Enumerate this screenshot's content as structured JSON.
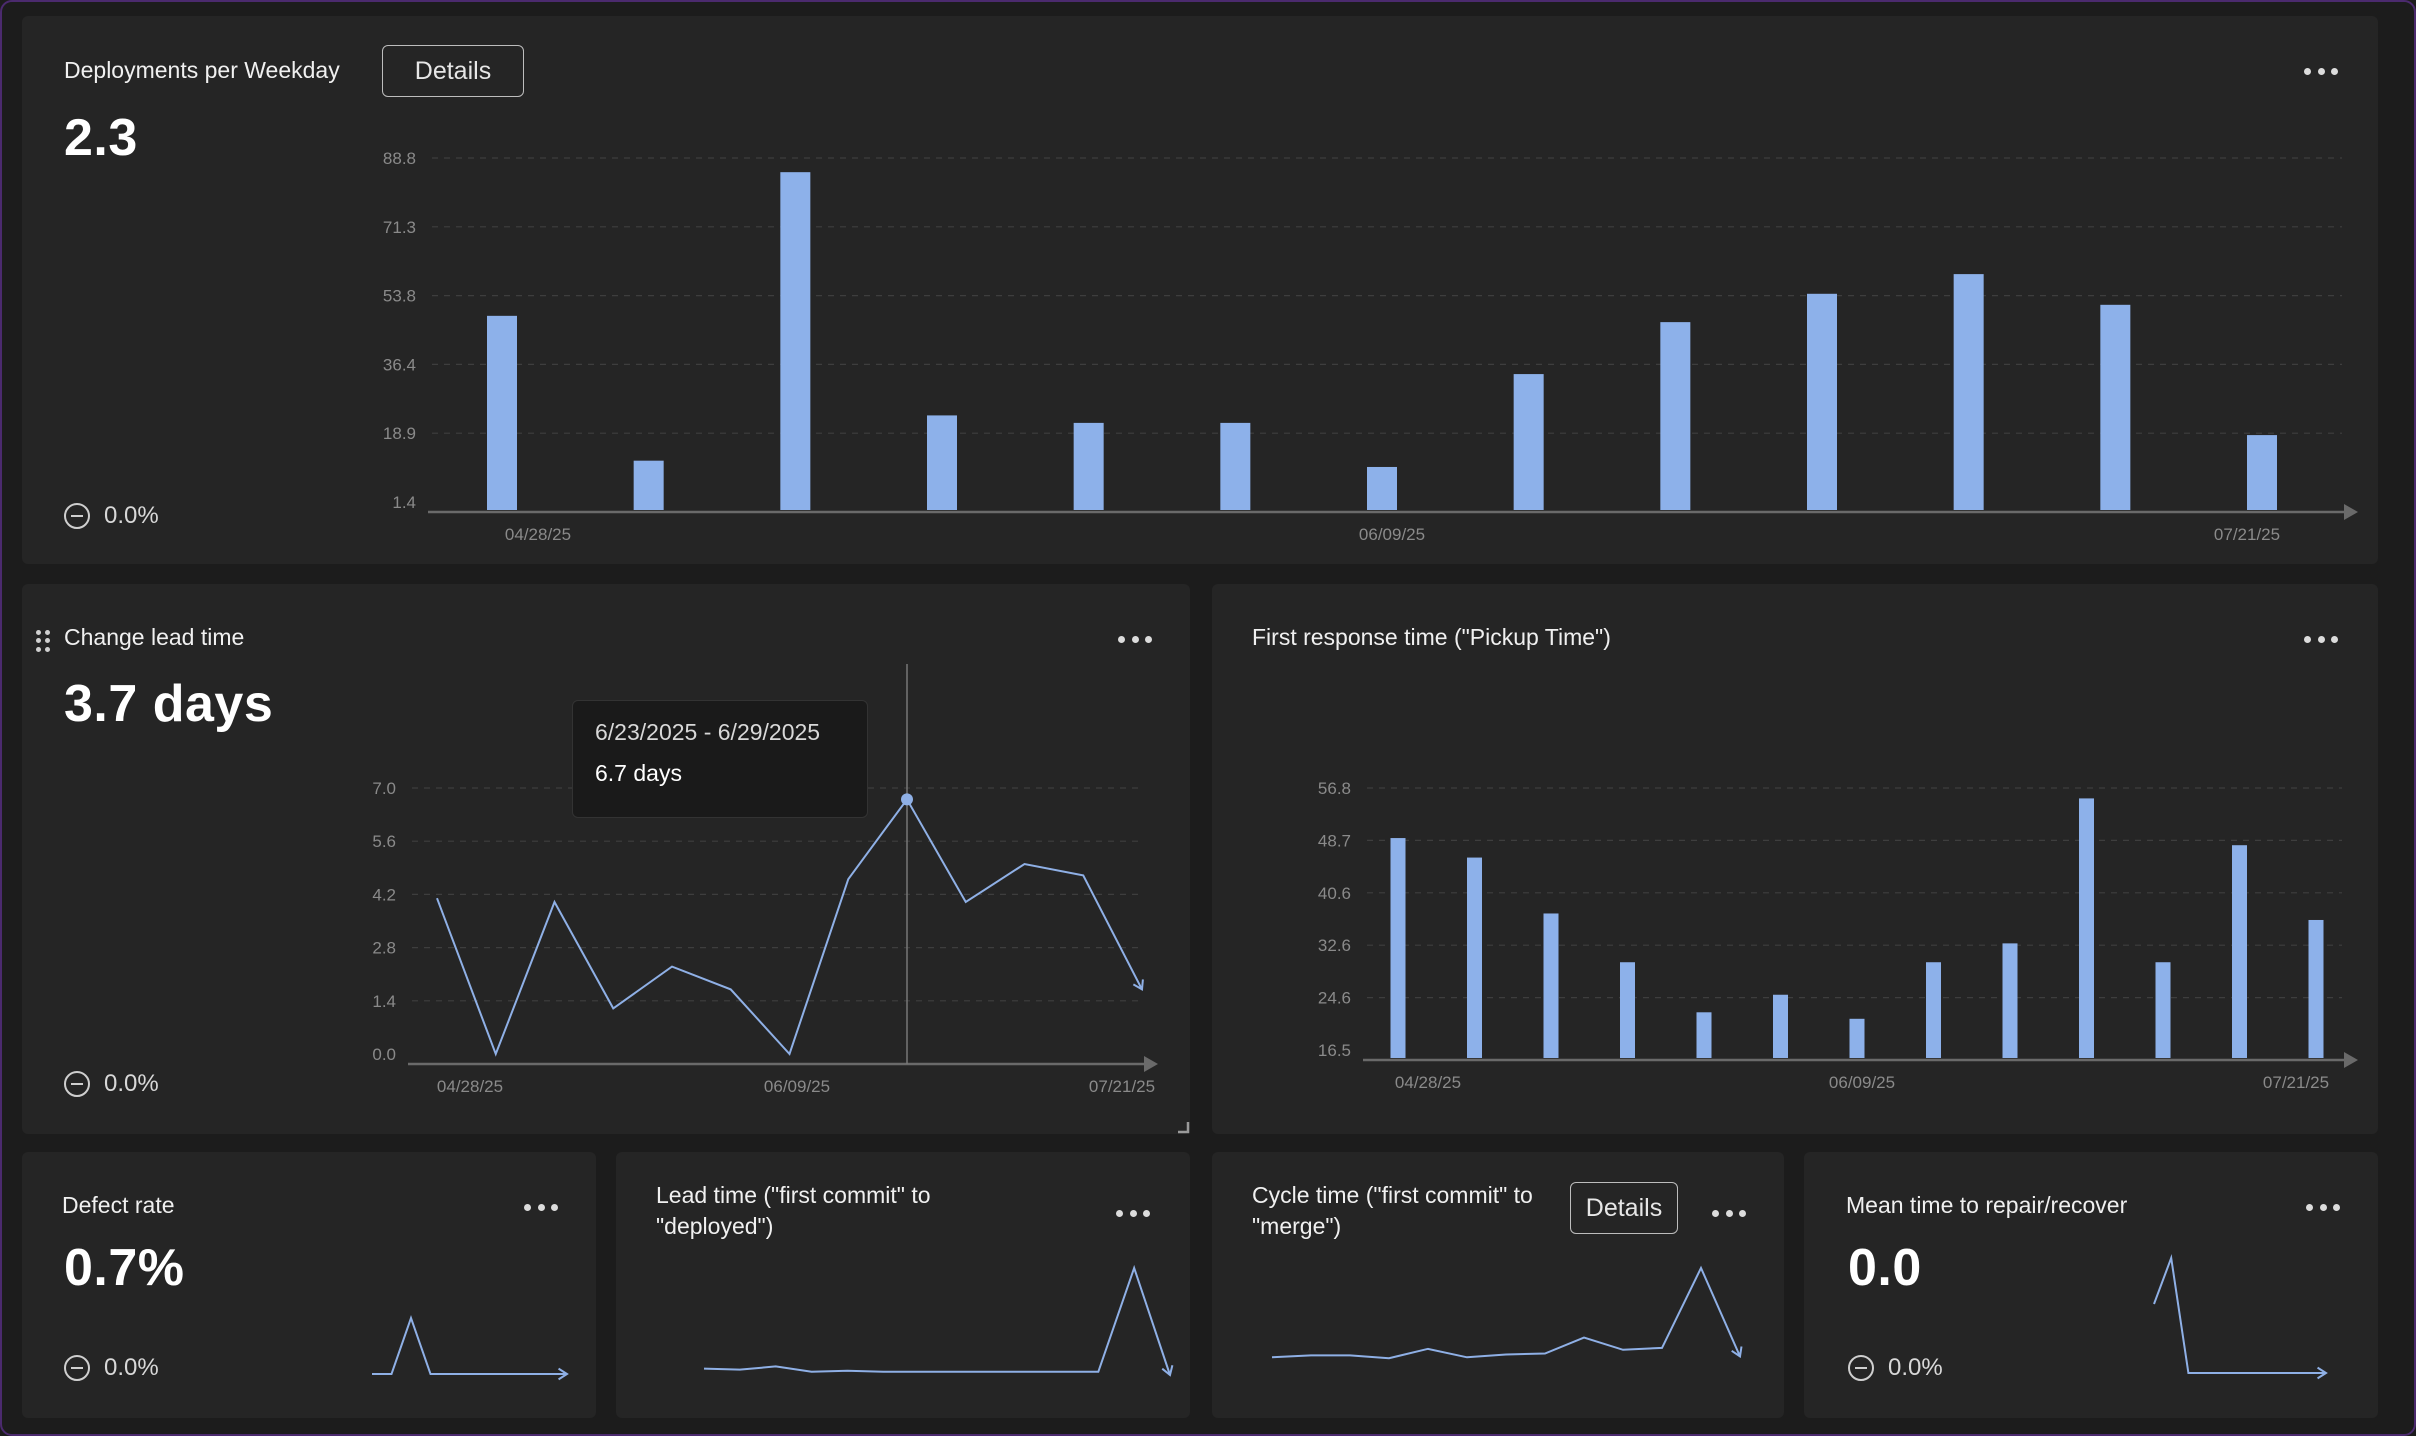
{
  "colors": {
    "bar": "#8db1ea",
    "line": "#8fb0e6",
    "grid": "#3e3e3e",
    "axis": "#6a6a6a",
    "tick": "#8a8a8a"
  },
  "panels": {
    "deployments": {
      "title": "Deployments per Weekday",
      "details_label": "Details",
      "value": "2.3",
      "delta": "0.0%",
      "chart_data": {
        "type": "bar",
        "y_ticks": [
          "88.8",
          "71.3",
          "53.8",
          "36.4",
          "18.9",
          "1.4"
        ],
        "x_ticks": [
          "04/28/25",
          "06/09/25",
          "07/21/25"
        ],
        "ylim": [
          1.4,
          88.8
        ],
        "values": [
          48.7,
          11.9,
          85.2,
          23.4,
          21.5,
          21.5,
          10.3,
          33.9,
          47.1,
          54.3,
          59.3,
          51.5,
          18.4
        ]
      }
    },
    "change_lead_time": {
      "title": "Change lead time",
      "value": "3.7 days",
      "delta": "0.0%",
      "tooltip": {
        "range": "6/23/2025 - 6/29/2025",
        "value": "6.7 days"
      },
      "chart_data": {
        "type": "line",
        "y_ticks": [
          "7.0",
          "5.6",
          "4.2",
          "2.8",
          "1.4",
          "0.0"
        ],
        "x_ticks": [
          "04/28/25",
          "06/09/25",
          "07/21/25"
        ],
        "ylim": [
          0,
          7.0
        ],
        "values": [
          4.1,
          0.0,
          4.0,
          1.2,
          2.3,
          1.7,
          0.0,
          4.6,
          6.7,
          4.0,
          5.0,
          4.7,
          1.7
        ],
        "highlight_index": 8
      }
    },
    "first_response": {
      "title": "First response time (\"Pickup Time\")",
      "chart_data": {
        "type": "bar",
        "y_ticks": [
          "56.8",
          "48.7",
          "40.6",
          "32.6",
          "24.6",
          "16.5"
        ],
        "x_ticks": [
          "04/28/25",
          "06/09/25",
          "07/21/25"
        ],
        "ylim": [
          16.5,
          56.8
        ],
        "values": [
          49.1,
          46.1,
          37.5,
          30.0,
          22.3,
          25.0,
          21.3,
          30.0,
          32.9,
          55.2,
          30.0,
          48.0,
          36.5
        ]
      }
    },
    "defect_rate": {
      "title": "Defect rate",
      "value": "0.7%",
      "delta": "0.0%",
      "sparkline": [
        0,
        0,
        1.0,
        0,
        0,
        0,
        0,
        0,
        0,
        0,
        0
      ]
    },
    "lead_time": {
      "title": "Lead time (\"first commit\" to \"deployed\")",
      "sparkline": [
        0.06,
        0.05,
        0.08,
        0.03,
        0.04,
        0.03,
        0.03,
        0.03,
        0.03,
        0.03,
        0.03,
        0.03,
        1.0,
        0.0
      ]
    },
    "cycle_time": {
      "title": "Cycle time (\"first commit\" to \"merge\")",
      "details_label": "Details",
      "sparkline": [
        0.05,
        0.07,
        0.07,
        0.04,
        0.14,
        0.05,
        0.08,
        0.09,
        0.26,
        0.13,
        0.15,
        1.0,
        0.06
      ]
    },
    "mttr": {
      "title": "Mean time to repair/recover",
      "value": "0.0",
      "delta": "0.0%",
      "sparkline": [
        0.6,
        1.0,
        0,
        0,
        0,
        0,
        0,
        0,
        0,
        0,
        0
      ]
    }
  }
}
